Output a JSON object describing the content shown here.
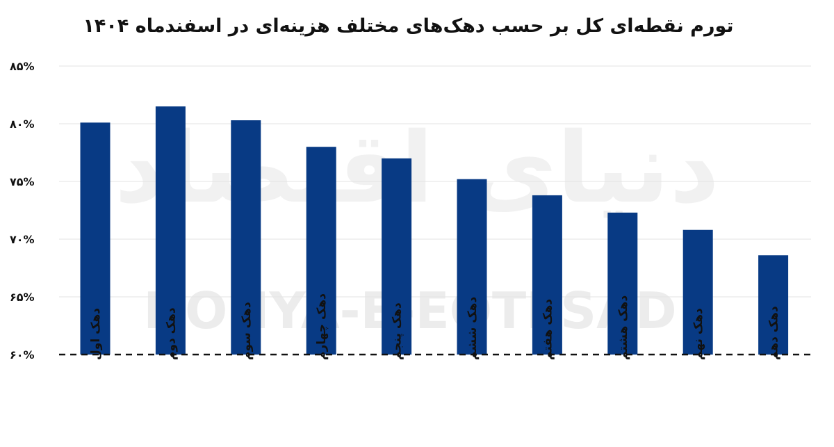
{
  "chart_data": {
    "type": "bar",
    "title": "تورم نقطه‌ای کل بر حسب دهک‌های مختلف هزینه‌ای در اسفندماه ۱۴۰۴",
    "xlabel": "",
    "ylabel": "",
    "categories": [
      "دهک اول",
      "دهک دوم",
      "دهک سوم",
      "دهک چهارم",
      "دهک پنجم",
      "دهک ششم",
      "دهک هفتم",
      "دهک هشتم",
      "دهک نهم",
      "دهک دهم"
    ],
    "values": [
      80.1,
      81.5,
      80.3,
      78.0,
      77.0,
      75.2,
      73.8,
      72.3,
      70.8,
      68.6
    ],
    "ylim": [
      60,
      85
    ],
    "yticks": [
      60,
      65,
      70,
      75,
      80,
      85
    ],
    "ytick_labels": [
      "۶۰%",
      "۶۵%",
      "۷۰%",
      "۷۵%",
      "۸۰%",
      "۸۵%"
    ],
    "grid": true,
    "legend": "none",
    "bar_color": "#083a84",
    "watermark": {
      "latin": "DONYA-E-EQTESAD",
      "persian": "دنیای اقتصاد"
    }
  }
}
